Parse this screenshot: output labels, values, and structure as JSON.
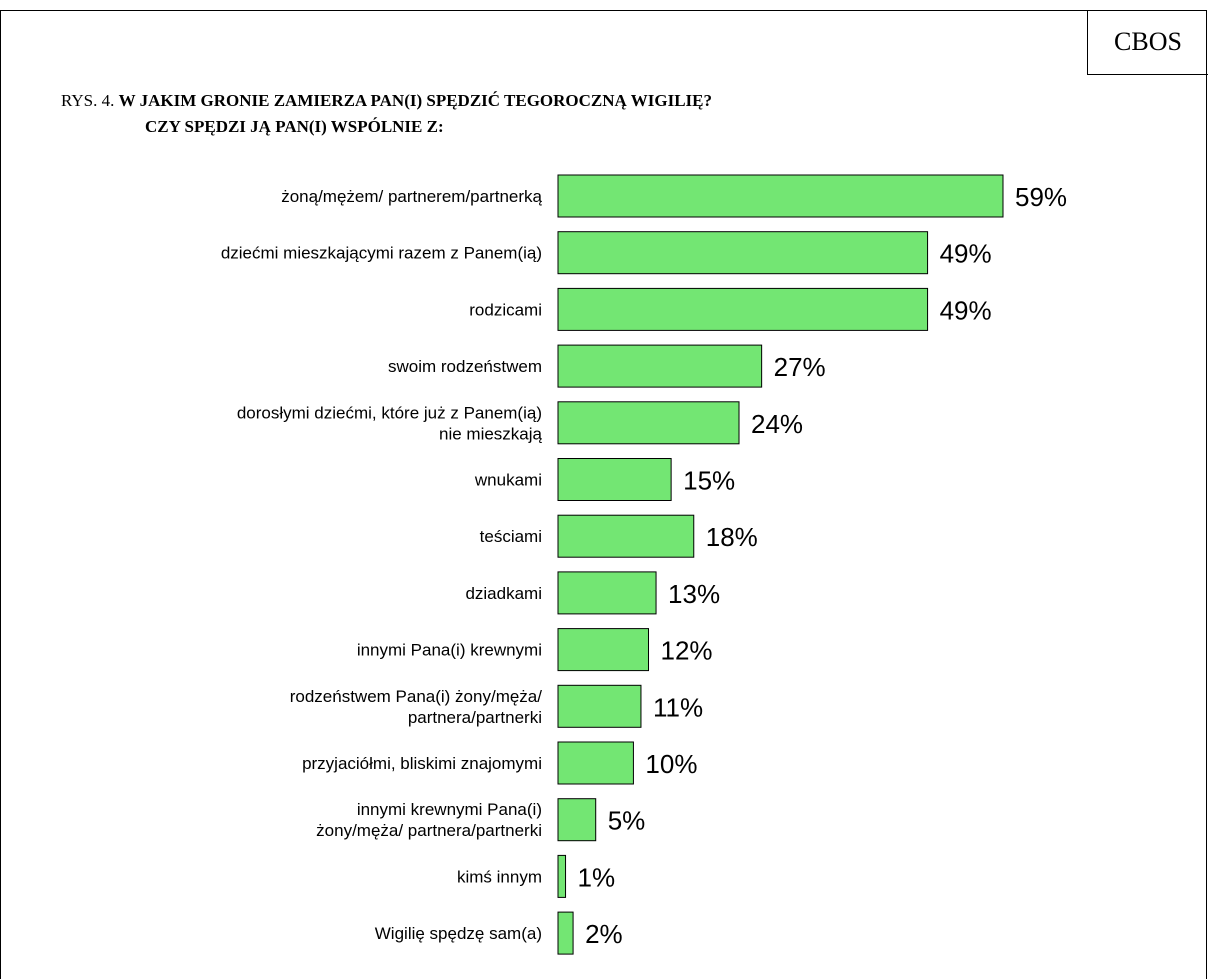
{
  "header": {
    "source_label": "CBOS",
    "title_prefix": "RYS. 4.",
    "title_line1": "W JAKIM GRONIE ZAMIERZA PAN(I) SPĘDZIĆ TEGOROCZNĄ WIGILIĘ?",
    "title_line2": "CZY SPĘDZI JĄ PAN(I) WSPÓLNIE Z:"
  },
  "colors": {
    "bar_fill": "#73e673",
    "bar_stroke": "#000000"
  },
  "chart_data": {
    "type": "bar",
    "orientation": "horizontal",
    "title": "W JAKIM GRONIE ZAMIERZA PAN(I) SPĘDZIĆ TEGOROCZNĄ WIGILIĘ? CZY SPĘDZI JĄ PAN(I) WSPÓLNIE Z:",
    "xlabel": "",
    "ylabel": "",
    "grid": false,
    "xlim": [
      0,
      59
    ],
    "categories": [
      [
        "żoną/mężem/ partnerem/partnerką"
      ],
      [
        "dziećmi mieszkającymi razem z Panem(ią)"
      ],
      [
        "rodzicami"
      ],
      [
        "swoim rodzeństwem"
      ],
      [
        "dorosłymi dziećmi, które już z Panem(ią)",
        "nie mieszkają"
      ],
      [
        "wnukami"
      ],
      [
        "teściami"
      ],
      [
        "dziadkami"
      ],
      [
        "innymi Pana(i) krewnymi"
      ],
      [
        "rodzeństwem Pana(i) żony/męża/",
        "partnera/partnerki"
      ],
      [
        "przyjaciółmi, bliskimi znajomymi"
      ],
      [
        "innymi krewnymi Pana(i)",
        "żony/męża/ partnera/partnerki"
      ],
      [
        "kimś innym"
      ],
      [
        "Wigilię spędzę sam(a)"
      ]
    ],
    "values": [
      59,
      49,
      49,
      27,
      24,
      15,
      18,
      13,
      12,
      11,
      10,
      5,
      1,
      2
    ],
    "value_labels": [
      "59%",
      "49%",
      "49%",
      "27%",
      "24%",
      "15%",
      "18%",
      "13%",
      "12%",
      "11%",
      "10%",
      "5%",
      "1%",
      "2%"
    ]
  }
}
